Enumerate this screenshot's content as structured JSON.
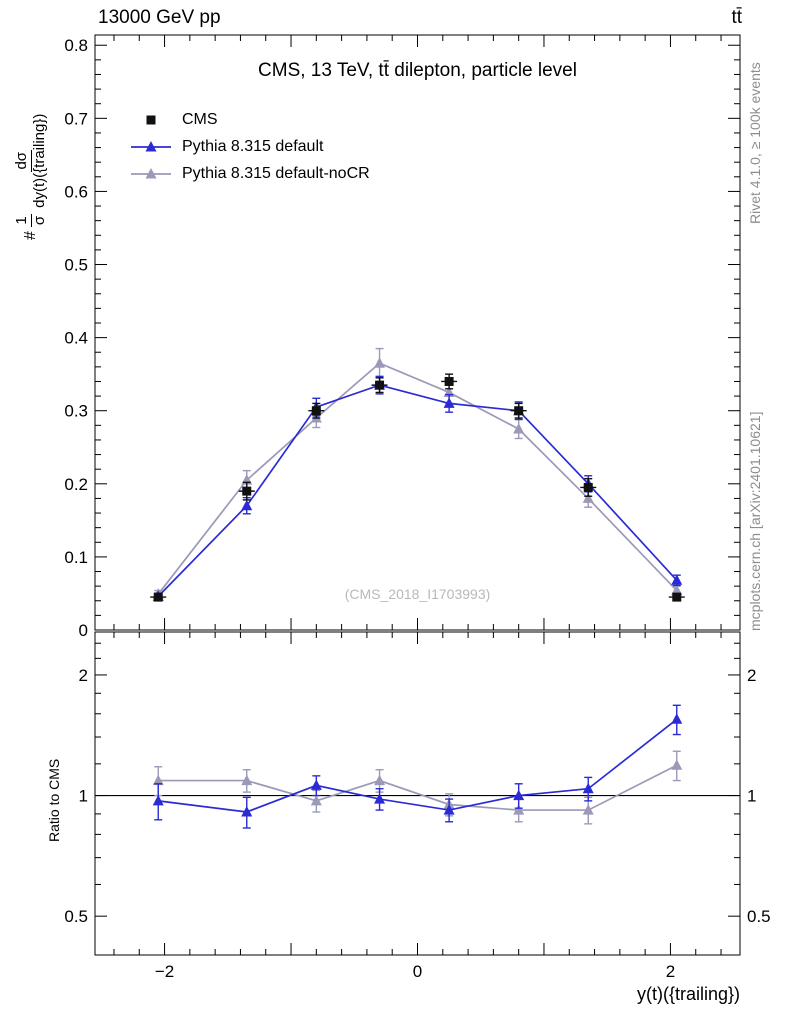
{
  "header": {
    "left": "13000 GeV pp",
    "right": "tt̄"
  },
  "title": "CMS, 13 TeV, tt̄ dilepton, particle level",
  "watermark": "(CMS_2018_I1703993)",
  "side_notes": {
    "top": "Rivet 4.1.0, ≥ 100k events",
    "bottom": "mcplots.cern.ch [arXiv:2401.10621]"
  },
  "axes": {
    "main_ylabel": {
      "prefix": "#",
      "frac1_num": "1",
      "frac1_den": "σ",
      "frac2_num": "dσ",
      "frac2_den": "dy(t)({trailing})"
    },
    "ratio_ylabel": "Ratio to CMS",
    "xlabel": "y(t)({trailing})"
  },
  "legend": [
    {
      "label": "CMS",
      "color": "#111111",
      "marker": "square",
      "line": false
    },
    {
      "label": "Pythia 8.315 default",
      "color": "#2b2bd5",
      "marker": "triangle",
      "line": true
    },
    {
      "label": "Pythia 8.315 default-noCR",
      "color": "#9a9ab8",
      "marker": "triangle",
      "line": true
    }
  ],
  "chart_data": {
    "type": "line",
    "x": [
      -2.05,
      -1.35,
      -0.8,
      -0.3,
      0.25,
      0.8,
      1.35,
      2.05
    ],
    "xlim": [
      -2.55,
      2.55
    ],
    "xtick_major": [
      -2,
      -1,
      0,
      1,
      2
    ],
    "xtick_minor_step": 0.2,
    "xtick_labels": [
      {
        "v": -2,
        "t": "−2"
      },
      {
        "v": 0,
        "t": "0"
      },
      {
        "v": 2,
        "t": "2"
      }
    ],
    "xlabel": "y(t)({trailing})",
    "main": {
      "ylim": [
        0,
        0.814
      ],
      "ytick_vals": [
        0,
        0.1,
        0.2,
        0.3,
        0.4,
        0.5,
        0.6,
        0.7,
        0.8
      ],
      "ytick_labels": [
        "0",
        "0.1",
        "0.2",
        "0.3",
        "0.4",
        "0.5",
        "0.6",
        "0.7",
        "0.8"
      ],
      "ytick_minor_step": 0.02,
      "series": [
        {
          "name": "Pythia 8.315 default-noCR",
          "color": "#9a9ab8",
          "marker": "triangle",
          "line": true,
          "values": [
            0.049,
            0.205,
            0.29,
            0.365,
            0.325,
            0.275,
            0.18,
            0.054
          ],
          "errors": [
            0.005,
            0.013,
            0.013,
            0.02,
            0.015,
            0.013,
            0.012,
            0.006
          ]
        },
        {
          "name": "Pythia 8.315 default",
          "color": "#2b2bd5",
          "marker": "triangle",
          "line": true,
          "values": [
            0.046,
            0.17,
            0.305,
            0.335,
            0.31,
            0.3,
            0.2,
            0.068
          ],
          "errors": [
            0.004,
            0.011,
            0.012,
            0.012,
            0.012,
            0.012,
            0.011,
            0.007
          ]
        },
        {
          "name": "CMS",
          "color": "#111111",
          "marker": "square",
          "line": false,
          "values": [
            0.045,
            0.19,
            0.3,
            0.335,
            0.34,
            0.3,
            0.195,
            0.045
          ],
          "errors": [
            0.004,
            0.012,
            0.01,
            0.01,
            0.01,
            0.01,
            0.012,
            0.004
          ]
        }
      ]
    },
    "ratio": {
      "scale": "log",
      "ylim": [
        0.4,
        2.56
      ],
      "ytick_vals": [
        0.5,
        1,
        2
      ],
      "ytick_labels": [
        "0.5",
        "1",
        "2"
      ],
      "ytick_minor": [
        0.6,
        0.7,
        0.8,
        0.9,
        1.2,
        1.4,
        1.6,
        1.8,
        2.2,
        2.4
      ],
      "reference_line": 1,
      "series": [
        {
          "name": "Pythia 8.315 default-noCR",
          "color": "#9a9ab8",
          "marker": "triangle",
          "line": true,
          "values": [
            1.09,
            1.09,
            0.97,
            1.09,
            0.95,
            0.92,
            0.92,
            1.19
          ],
          "errors": [
            0.09,
            0.07,
            0.06,
            0.07,
            0.06,
            0.06,
            0.07,
            0.1
          ]
        },
        {
          "name": "Pythia 8.315 default",
          "color": "#2b2bd5",
          "marker": "triangle",
          "line": true,
          "values": [
            0.97,
            0.91,
            1.06,
            0.98,
            0.92,
            1.0,
            1.04,
            1.55
          ],
          "errors": [
            0.1,
            0.08,
            0.06,
            0.06,
            0.06,
            0.07,
            0.07,
            0.13
          ]
        }
      ]
    }
  }
}
